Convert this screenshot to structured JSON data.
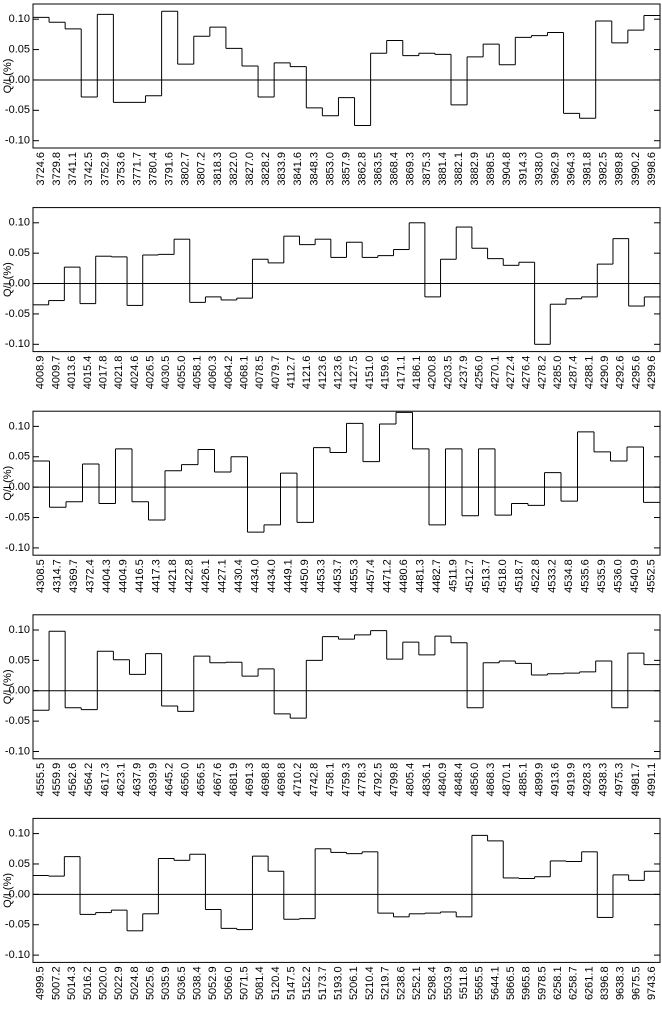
{
  "chart_data": [
    {
      "type": "step",
      "ylabel": "Q/I (%)",
      "ylim": [
        -0.112,
        0.125
      ],
      "hline": 0,
      "yticks": [
        {
          "value": -0.1,
          "label": "-0.10"
        },
        {
          "value": -0.05,
          "label": "-0.05"
        },
        {
          "value": 0,
          "label": "0.00"
        },
        {
          "value": 0.05,
          "label": "0.05"
        },
        {
          "value": 0.1,
          "label": "0.10"
        }
      ],
      "categories": [
        "3724.6",
        "3729.8",
        "3741.1",
        "3742.5",
        "3752.9",
        "3753.6",
        "3771.7",
        "3780.4",
        "3791.6",
        "3802.7",
        "3807.2",
        "3818.3",
        "3822.0",
        "3827.0",
        "3828.2",
        "3833.9",
        "3841.6",
        "3848.3",
        "3853.0",
        "3857.9",
        "3862.8",
        "3863.5",
        "3868.4",
        "3869.3",
        "3875.3",
        "3881.4",
        "3882.1",
        "3882.9",
        "3898.5",
        "3904.8",
        "3914.3",
        "3938.0",
        "3962.9",
        "3964.3",
        "3981.8",
        "3982.5",
        "3989.8",
        "3990.2",
        "3998.6"
      ],
      "values": [
        0.103,
        0.095,
        0.084,
        -0.028,
        0.108,
        -0.037,
        -0.037,
        -0.026,
        0.113,
        0.026,
        0.072,
        0.087,
        0.052,
        0.023,
        -0.028,
        0.028,
        0.022,
        -0.046,
        -0.059,
        -0.029,
        -0.075,
        0.044,
        0.065,
        0.04,
        0.044,
        0.042,
        -0.041,
        0.038,
        0.059,
        0.025,
        0.07,
        0.073,
        0.078,
        -0.055,
        -0.063,
        0.097,
        0.061,
        0.082,
        0.106
      ]
    },
    {
      "type": "step",
      "ylabel": "Q/I (%)",
      "ylim": [
        -0.112,
        0.125
      ],
      "hline": 0,
      "yticks": [
        {
          "value": -0.1,
          "label": "-0.10"
        },
        {
          "value": -0.05,
          "label": "-0.05"
        },
        {
          "value": 0,
          "label": "0.00"
        },
        {
          "value": 0.05,
          "label": "0.05"
        },
        {
          "value": 0.1,
          "label": "0.10"
        }
      ],
      "categories": [
        "4008.9",
        "4009.7",
        "4013.6",
        "4015.4",
        "4017.8",
        "4021.8",
        "4024.6",
        "4026.5",
        "4030.5",
        "4055.0",
        "4058.1",
        "4060.3",
        "4064.2",
        "4068.1",
        "4078.5",
        "4079.7",
        "4112.7",
        "4121.6",
        "4123.6",
        "4123.6",
        "4127.5",
        "4151.0",
        "4159.6",
        "4171.1",
        "4186.1",
        "4200.8",
        "4203.5",
        "4237.9",
        "4256.0",
        "4270.1",
        "4272.4",
        "4276.4",
        "4278.2",
        "4285.0",
        "4287.4",
        "4288.1",
        "4290.9",
        "4292.6",
        "4295.6",
        "4299.6"
      ],
      "values": [
        -0.035,
        -0.028,
        0.027,
        -0.033,
        0.045,
        0.044,
        -0.036,
        0.047,
        0.048,
        0.073,
        -0.031,
        -0.022,
        -0.027,
        -0.024,
        0.04,
        0.034,
        0.078,
        0.064,
        0.073,
        0.043,
        0.068,
        0.043,
        0.046,
        0.056,
        0.1,
        -0.022,
        0.04,
        0.093,
        0.058,
        0.041,
        0.03,
        0.035,
        -0.1,
        -0.034,
        -0.025,
        -0.022,
        0.032,
        0.074,
        -0.037,
        -0.022
      ]
    },
    {
      "type": "step",
      "ylabel": "Q/I (%)",
      "ylim": [
        -0.112,
        0.125
      ],
      "hline": 0,
      "yticks": [
        {
          "value": -0.1,
          "label": "-0.10"
        },
        {
          "value": -0.05,
          "label": "-0.05"
        },
        {
          "value": 0,
          "label": "0.00"
        },
        {
          "value": 0.05,
          "label": "0.05"
        },
        {
          "value": 0.1,
          "label": "0.10"
        }
      ],
      "categories": [
        "4308.5",
        "4314.7",
        "4369.7",
        "4372.4",
        "4404.3",
        "4404.9",
        "4416.5",
        "4417.3",
        "4421.8",
        "4422.8",
        "4426.1",
        "4427.1",
        "4430.4",
        "4434.0",
        "4434.0",
        "4449.1",
        "4450.9",
        "4453.3",
        "4453.7",
        "4455.3",
        "4457.4",
        "4471.2",
        "4480.6",
        "4481.3",
        "4482.7",
        "4511.9",
        "4512.7",
        "4513.7",
        "4518.0",
        "4518.7",
        "4522.8",
        "4533.2",
        "4534.8",
        "4535.6",
        "4535.9",
        "4536.0",
        "4540.9",
        "4552.5"
      ],
      "values": [
        0.043,
        -0.033,
        -0.024,
        0.038,
        -0.027,
        0.063,
        -0.024,
        -0.054,
        0.027,
        0.037,
        0.062,
        0.025,
        0.05,
        -0.074,
        -0.062,
        0.023,
        -0.058,
        0.065,
        0.057,
        0.105,
        0.042,
        0.104,
        0.123,
        0.063,
        -0.062,
        0.063,
        -0.047,
        0.063,
        -0.046,
        -0.027,
        -0.03,
        0.024,
        -0.023,
        0.091,
        0.058,
        0.043,
        0.066,
        -0.025
      ]
    },
    {
      "type": "step",
      "ylabel": "Q/I (%)",
      "ylim": [
        -0.112,
        0.125
      ],
      "hline": 0,
      "yticks": [
        {
          "value": -0.1,
          "label": "-0.10"
        },
        {
          "value": -0.05,
          "label": "-0.05"
        },
        {
          "value": 0,
          "label": "0.00"
        },
        {
          "value": 0.05,
          "label": "0.05"
        },
        {
          "value": 0.1,
          "label": "0.10"
        }
      ],
      "categories": [
        "4555.5",
        "4559.9",
        "4562.6",
        "4564.2",
        "4617.3",
        "4623.1",
        "4637.9",
        "4639.9",
        "4645.2",
        "4656.0",
        "4656.5",
        "4667.6",
        "4681.9",
        "4691.3",
        "4698.8",
        "4698.8",
        "4710.2",
        "4742.8",
        "4758.1",
        "4759.3",
        "4778.3",
        "4792.5",
        "4799.8",
        "4805.4",
        "4836.1",
        "4840.9",
        "4848.4",
        "4856.0",
        "4868.3",
        "4870.1",
        "4885.1",
        "4899.9",
        "4913.6",
        "4919.9",
        "4928.3",
        "4938.3",
        "4975.3",
        "4981.7",
        "4991.1"
      ],
      "values": [
        -0.032,
        0.098,
        -0.028,
        -0.031,
        0.065,
        0.051,
        0.027,
        0.061,
        -0.025,
        -0.034,
        0.057,
        0.046,
        0.047,
        0.024,
        0.036,
        -0.038,
        -0.045,
        0.05,
        0.089,
        0.085,
        0.092,
        0.099,
        0.052,
        0.08,
        0.059,
        0.09,
        0.079,
        -0.028,
        0.046,
        0.049,
        0.045,
        0.026,
        0.028,
        0.029,
        0.031,
        0.049,
        -0.028,
        0.062,
        0.043
      ]
    },
    {
      "type": "step",
      "ylabel": "Q/I (%)",
      "ylim": [
        -0.112,
        0.125
      ],
      "hline": 0,
      "yticks": [
        {
          "value": -0.1,
          "label": "-0.10"
        },
        {
          "value": -0.05,
          "label": "-0.05"
        },
        {
          "value": 0,
          "label": "0.00"
        },
        {
          "value": 0.05,
          "label": "0.05"
        },
        {
          "value": 0.1,
          "label": "0.10"
        }
      ],
      "categories": [
        "4999.5",
        "5007.2",
        "5014.3",
        "5016.2",
        "5020.0",
        "5022.9",
        "5024.8",
        "5025.6",
        "5035.9",
        "5036.5",
        "5038.4",
        "5052.9",
        "5066.0",
        "5071.5",
        "5081.4",
        "5120.4",
        "5147.5",
        "5152.2",
        "5173.7",
        "5193.0",
        "5206.1",
        "5210.4",
        "5219.7",
        "5238.6",
        "5252.1",
        "5298.4",
        "5503.9",
        "5511.8",
        "5565.5",
        "5644.1",
        "5866.5",
        "5965.8",
        "5978.5",
        "6258.1",
        "6258.7",
        "6261.1",
        "8396.8",
        "9638.3",
        "9675.5",
        "9743.6"
      ],
      "values": [
        0.031,
        0.03,
        0.062,
        -0.033,
        -0.03,
        -0.026,
        -0.06,
        -0.032,
        0.059,
        0.056,
        0.066,
        -0.025,
        -0.056,
        -0.058,
        0.063,
        0.038,
        -0.041,
        -0.04,
        0.075,
        0.069,
        0.067,
        0.07,
        -0.031,
        -0.037,
        -0.032,
        -0.031,
        -0.029,
        -0.037,
        0.097,
        0.088,
        0.027,
        0.026,
        0.029,
        0.055,
        0.054,
        0.07,
        -0.038,
        0.032,
        0.023,
        0.038
      ]
    }
  ]
}
